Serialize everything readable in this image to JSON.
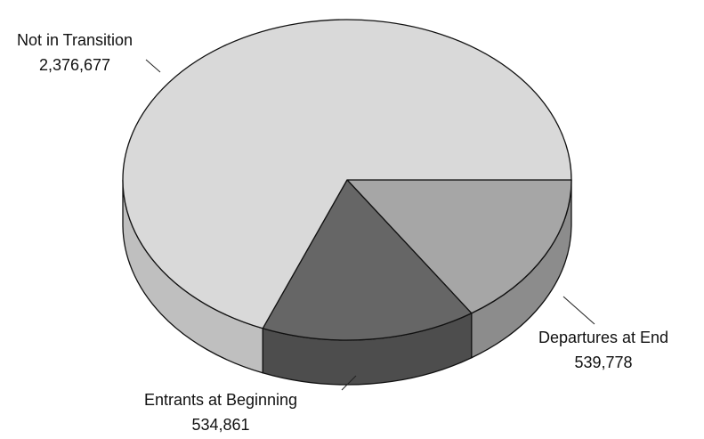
{
  "chart_data": {
    "type": "pie",
    "categories": [
      "Departures at End",
      "Entrants at Beginning",
      "Not in Transition"
    ],
    "values": [
      539778,
      534861,
      2376677
    ],
    "value_labels": [
      "539,778",
      "534,861",
      "2,376,677"
    ],
    "colors": [
      "#a6a6a6",
      "#666666",
      "#d9d9d9"
    ],
    "side_colors": [
      "#8c8c8c",
      "#4d4d4d",
      "#bfbfbf"
    ]
  }
}
